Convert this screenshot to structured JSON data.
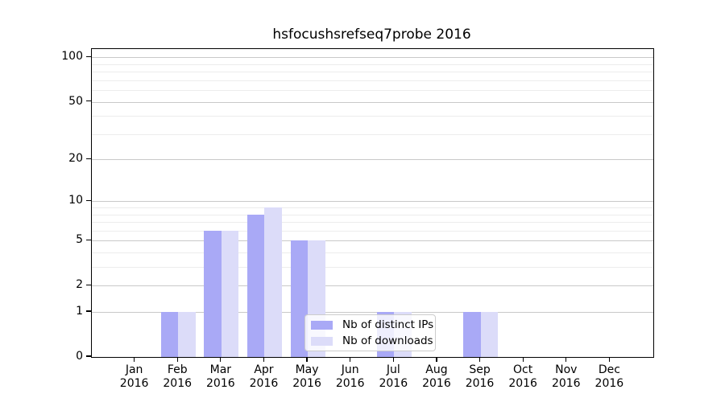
{
  "chart_data": {
    "type": "bar",
    "title": "hsfocushsrefseq7probe 2016",
    "categories": [
      "Jan",
      "Feb",
      "Mar",
      "Apr",
      "May",
      "Jun",
      "Jul",
      "Aug",
      "Sep",
      "Oct",
      "Nov",
      "Dec"
    ],
    "xtick_year": "2016",
    "series": [
      {
        "name": "Nb of distinct IPs",
        "color": "#a9a9f6",
        "values": [
          0,
          1,
          6,
          8,
          5,
          0,
          1,
          0,
          1,
          0,
          0,
          0
        ]
      },
      {
        "name": "Nb of downloads",
        "color": "#dcdcf9",
        "values": [
          0,
          1,
          6,
          9,
          5,
          0,
          1,
          0,
          1,
          0,
          0,
          0
        ]
      }
    ],
    "xlabel": "",
    "ylabel": "",
    "yscale": "log1p",
    "ylim": [
      0,
      114
    ],
    "yticks": [
      0,
      1,
      2,
      5,
      10,
      20,
      50,
      100
    ],
    "minor_gridlines": [
      3,
      4,
      6,
      7,
      8,
      9,
      30,
      40,
      60,
      70,
      80,
      90
    ],
    "grid": "on",
    "legend_position": "inside-lower-center",
    "style": {
      "grid_major_color": "#c9c9c9",
      "grid_minor_color": "#ececec",
      "spine_color": "#000000",
      "background_color": "#ffffff"
    }
  }
}
